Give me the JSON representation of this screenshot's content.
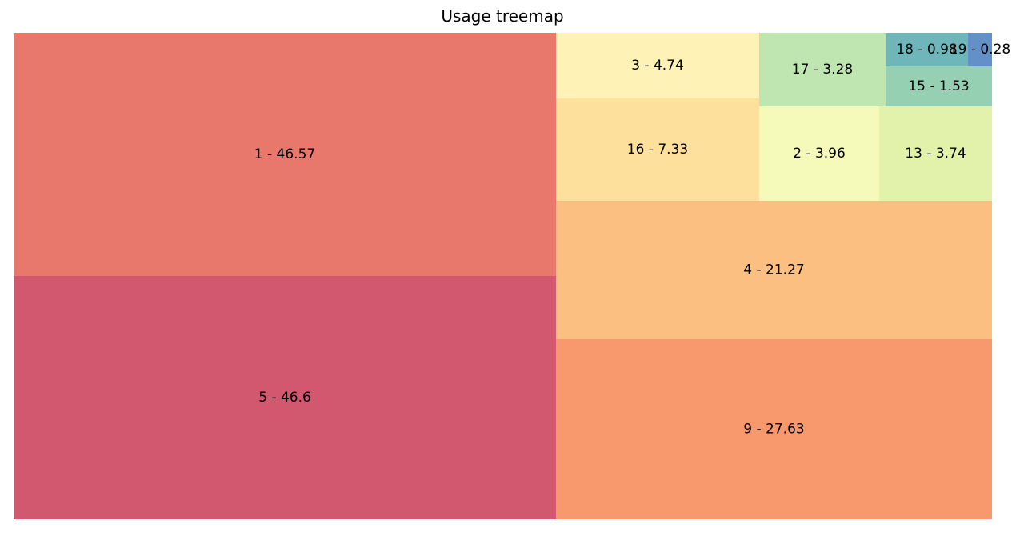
{
  "chart_data": {
    "type": "treemap",
    "title": "Usage treemap",
    "items": [
      {
        "label": "1 - 46.57",
        "name": "1",
        "value": 46.57,
        "color": "#e8786b"
      },
      {
        "label": "5 - 46.6",
        "name": "5",
        "value": 46.6,
        "color": "#d25870"
      },
      {
        "label": "3 - 4.74",
        "name": "3",
        "value": 4.74,
        "color": "#fef2b6"
      },
      {
        "label": "17 - 3.28",
        "name": "17",
        "value": 3.28,
        "color": "#bfe5b1"
      },
      {
        "label": "18 - 0.98",
        "name": "18",
        "value": 0.98,
        "color": "#6fb6bb"
      },
      {
        "label": "19 - 0.28",
        "name": "19",
        "value": 0.28,
        "color": "#6391c7"
      },
      {
        "label": "15 - 1.53",
        "name": "15",
        "value": 1.53,
        "color": "#95d0b3"
      },
      {
        "label": "16 - 7.33",
        "name": "16",
        "value": 7.33,
        "color": "#fde09c"
      },
      {
        "label": "2 - 3.96",
        "name": "2",
        "value": 3.96,
        "color": "#f5fabb"
      },
      {
        "label": "13 - 3.74",
        "name": "13",
        "value": 3.74,
        "color": "#e3f2ab"
      },
      {
        "label": "4 - 21.27",
        "name": "4",
        "value": 21.27,
        "color": "#fbbf81"
      },
      {
        "label": "9 - 27.63",
        "name": "9",
        "value": 27.63,
        "color": "#f7986d"
      }
    ]
  }
}
